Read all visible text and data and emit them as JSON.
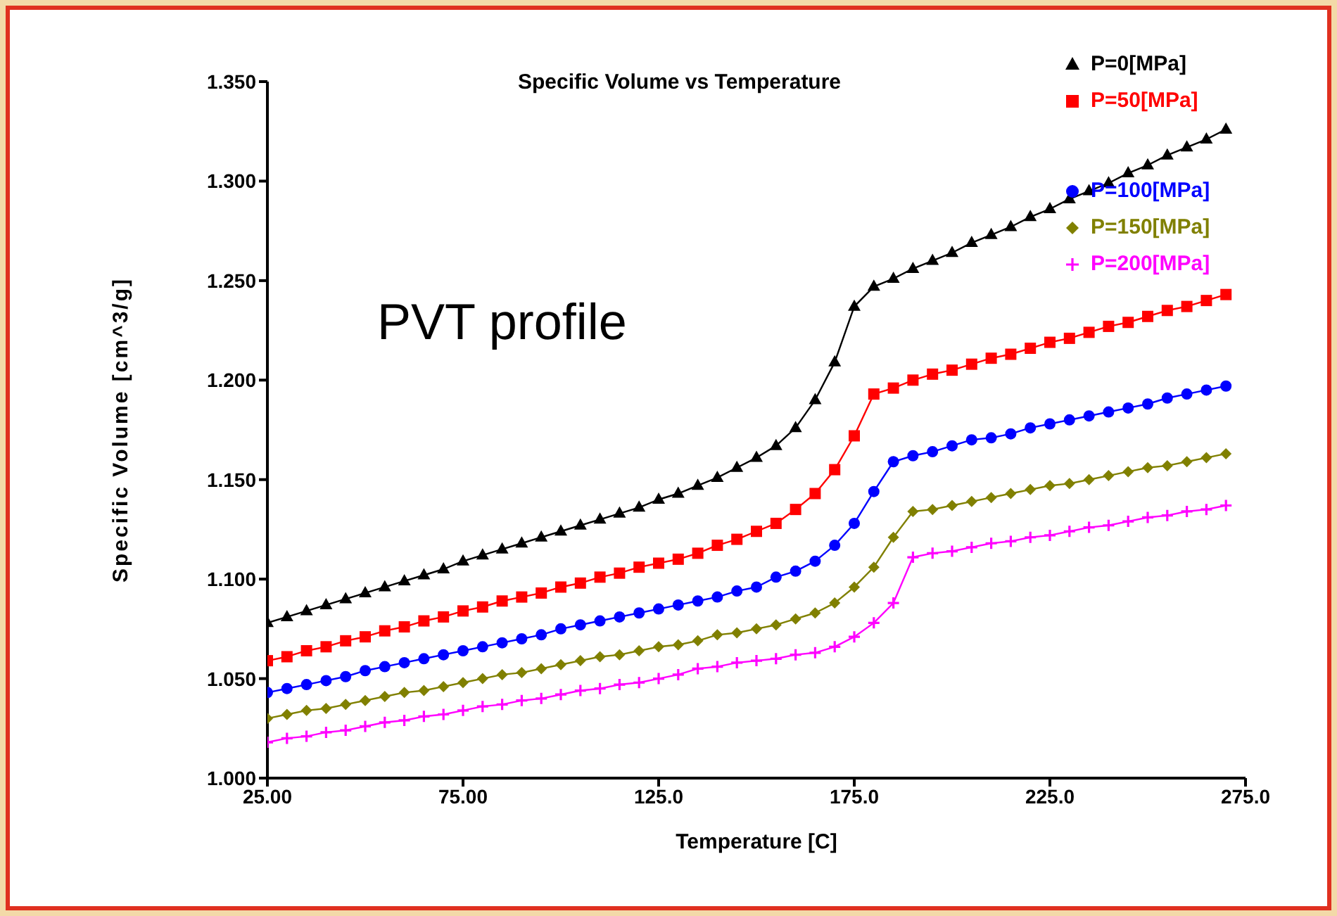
{
  "chart_data": {
    "type": "line",
    "title": "Specific Volume vs Temperature",
    "xlabel": "Temperature [C]",
    "ylabel": "Specific Volume [cm^3/g]",
    "annotations": [
      "PVT profile"
    ],
    "x": [
      25,
      30,
      35,
      40,
      45,
      50,
      55,
      60,
      65,
      70,
      75,
      80,
      85,
      90,
      95,
      100,
      105,
      110,
      115,
      120,
      125,
      130,
      135,
      140,
      145,
      150,
      155,
      160,
      165,
      170,
      175,
      180,
      185,
      190,
      195,
      200,
      205,
      210,
      215,
      220,
      225,
      230,
      235,
      240,
      245,
      250,
      255,
      260,
      265,
      270
    ],
    "series": [
      {
        "name": "P=0[MPa]",
        "color": "#000000",
        "marker": "triangle",
        "values": [
          1.078,
          1.081,
          1.084,
          1.087,
          1.09,
          1.093,
          1.096,
          1.099,
          1.102,
          1.105,
          1.109,
          1.112,
          1.115,
          1.118,
          1.121,
          1.124,
          1.127,
          1.13,
          1.133,
          1.136,
          1.14,
          1.143,
          1.147,
          1.151,
          1.156,
          1.161,
          1.167,
          1.176,
          1.19,
          1.209,
          1.237,
          1.247,
          1.251,
          1.256,
          1.26,
          1.264,
          1.269,
          1.273,
          1.277,
          1.282,
          1.286,
          1.291,
          1.295,
          1.299,
          1.304,
          1.308,
          1.313,
          1.317,
          1.321,
          1.326
        ]
      },
      {
        "name": "P=50[MPa]",
        "color": "#ff0000",
        "marker": "square",
        "values": [
          1.059,
          1.061,
          1.064,
          1.066,
          1.069,
          1.071,
          1.074,
          1.076,
          1.079,
          1.081,
          1.084,
          1.086,
          1.089,
          1.091,
          1.093,
          1.096,
          1.098,
          1.101,
          1.103,
          1.106,
          1.108,
          1.11,
          1.113,
          1.117,
          1.12,
          1.124,
          1.128,
          1.135,
          1.143,
          1.155,
          1.172,
          1.193,
          1.196,
          1.2,
          1.203,
          1.205,
          1.208,
          1.211,
          1.213,
          1.216,
          1.219,
          1.221,
          1.224,
          1.227,
          1.229,
          1.232,
          1.235,
          1.237,
          1.24,
          1.243
        ]
      },
      {
        "name": "P=100[MPa]",
        "color": "#0000ff",
        "marker": "circle",
        "values": [
          1.043,
          1.045,
          1.047,
          1.049,
          1.051,
          1.054,
          1.056,
          1.058,
          1.06,
          1.062,
          1.064,
          1.066,
          1.068,
          1.07,
          1.072,
          1.075,
          1.077,
          1.079,
          1.081,
          1.083,
          1.085,
          1.087,
          1.089,
          1.091,
          1.094,
          1.096,
          1.101,
          1.104,
          1.109,
          1.117,
          1.128,
          1.144,
          1.159,
          1.162,
          1.164,
          1.167,
          1.17,
          1.171,
          1.173,
          1.176,
          1.178,
          1.18,
          1.182,
          1.184,
          1.186,
          1.188,
          1.191,
          1.193,
          1.195,
          1.197
        ]
      },
      {
        "name": "P=150[MPa]",
        "color": "#808000",
        "marker": "diamond",
        "values": [
          1.03,
          1.032,
          1.034,
          1.035,
          1.037,
          1.039,
          1.041,
          1.043,
          1.044,
          1.046,
          1.048,
          1.05,
          1.052,
          1.053,
          1.055,
          1.057,
          1.059,
          1.061,
          1.062,
          1.064,
          1.066,
          1.067,
          1.069,
          1.072,
          1.073,
          1.075,
          1.077,
          1.08,
          1.083,
          1.088,
          1.096,
          1.106,
          1.121,
          1.134,
          1.135,
          1.137,
          1.139,
          1.141,
          1.143,
          1.145,
          1.147,
          1.148,
          1.15,
          1.152,
          1.154,
          1.156,
          1.157,
          1.159,
          1.161,
          1.163
        ]
      },
      {
        "name": "P=200[MPa]",
        "color": "#ff00ff",
        "marker": "cross",
        "values": [
          1.018,
          1.02,
          1.021,
          1.023,
          1.024,
          1.026,
          1.028,
          1.029,
          1.031,
          1.032,
          1.034,
          1.036,
          1.037,
          1.039,
          1.04,
          1.042,
          1.044,
          1.045,
          1.047,
          1.048,
          1.05,
          1.052,
          1.055,
          1.056,
          1.058,
          1.059,
          1.06,
          1.062,
          1.063,
          1.066,
          1.071,
          1.078,
          1.088,
          1.111,
          1.113,
          1.114,
          1.116,
          1.118,
          1.119,
          1.121,
          1.122,
          1.124,
          1.126,
          1.127,
          1.129,
          1.131,
          1.132,
          1.134,
          1.135,
          1.137
        ]
      }
    ],
    "xlim": [
      25,
      275
    ],
    "xticks": [
      {
        "value": 25,
        "label": "25.00"
      },
      {
        "value": 75,
        "label": "75.00"
      },
      {
        "value": 125,
        "label": "125.0"
      },
      {
        "value": 175,
        "label": "175.0"
      },
      {
        "value": 225,
        "label": "225.0"
      },
      {
        "value": 275,
        "label": "275.0"
      }
    ],
    "ylim": [
      1.0,
      1.35
    ],
    "yticks": [
      {
        "value": 1.0,
        "label": "1.000"
      },
      {
        "value": 1.05,
        "label": "1.050"
      },
      {
        "value": 1.1,
        "label": "1.100"
      },
      {
        "value": 1.15,
        "label": "1.150"
      },
      {
        "value": 1.2,
        "label": "1.200"
      },
      {
        "value": 1.25,
        "label": "1.250"
      },
      {
        "value": 1.3,
        "label": "1.300"
      },
      {
        "value": 1.35,
        "label": "1.350"
      }
    ],
    "grid": false,
    "legend": "top right",
    "line_style": "solid"
  }
}
